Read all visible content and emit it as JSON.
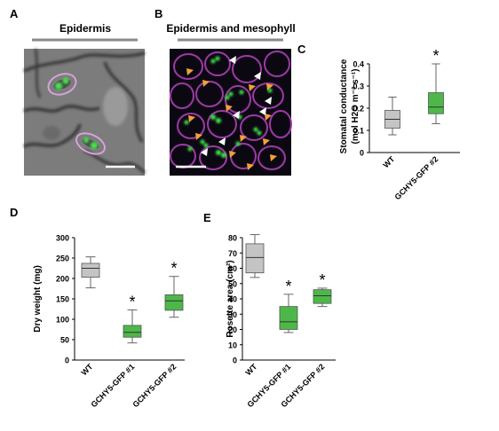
{
  "panels": {
    "A": {
      "label": "A",
      "title": "Epidermis"
    },
    "B": {
      "label": "B",
      "title": "Epidermis and mesophyll"
    },
    "C": {
      "label": "C"
    },
    "D": {
      "label": "D"
    },
    "E": {
      "label": "E"
    }
  },
  "chart_data": [
    {
      "id": "C",
      "type": "box",
      "ylabel_line1": "Stomatal conductance",
      "ylabel_line2": "(mol H2O m⁻² s⁻¹)",
      "ylim": [
        0,
        0.4
      ],
      "yticks": [
        "0",
        "0.1",
        "0.2",
        "0.3",
        "0.4"
      ],
      "categories": [
        "WT",
        "GCHY5-GFP #2"
      ],
      "boxes": [
        {
          "name": "WT",
          "color": "#c4c4c4",
          "min": 0.08,
          "q1": 0.11,
          "median": 0.15,
          "q3": 0.19,
          "max": 0.25,
          "star": ""
        },
        {
          "name": "GCHY5-GFP #2",
          "color": "#4db849",
          "min": 0.13,
          "q1": 0.175,
          "median": 0.205,
          "q3": 0.27,
          "max": 0.4,
          "star": "*"
        }
      ]
    },
    {
      "id": "D",
      "type": "box",
      "ylabel": "Dry weight (mg)",
      "ylim": [
        0,
        300
      ],
      "yticks": [
        "0",
        "50",
        "100",
        "150",
        "200",
        "250",
        "300"
      ],
      "categories": [
        "WT",
        "GCHY5-GFP #1",
        "GCHY5-GFP #2"
      ],
      "boxes": [
        {
          "name": "WT",
          "color": "#c4c4c4",
          "min": 177,
          "q1": 203,
          "median": 225,
          "q3": 237,
          "max": 253,
          "star": ""
        },
        {
          "name": "GCHY5-GFP #1",
          "color": "#4db849",
          "min": 42,
          "q1": 56,
          "median": 68,
          "q3": 85,
          "max": 123,
          "star": "*"
        },
        {
          "name": "GCHY5-GFP #2",
          "color": "#4db849",
          "min": 105,
          "q1": 122,
          "median": 145,
          "q3": 160,
          "max": 205,
          "star": "*"
        }
      ]
    },
    {
      "id": "E",
      "type": "box",
      "ylabel": "Rosette area (cm²)",
      "ylim": [
        0,
        80
      ],
      "yticks": [
        "0",
        "10",
        "20",
        "30",
        "40",
        "50",
        "60",
        "70",
        "80"
      ],
      "categories": [
        "WT",
        "GCHY5-GFP #1",
        "GCHY5-GFP #2"
      ],
      "boxes": [
        {
          "name": "WT",
          "color": "#c4c4c4",
          "min": 54,
          "q1": 57,
          "median": 67,
          "q3": 76,
          "max": 82,
          "star": ""
        },
        {
          "name": "GCHY5-GFP #1",
          "color": "#4db849",
          "min": 18,
          "q1": 20,
          "median": 25,
          "q3": 35,
          "max": 43,
          "star": "*"
        },
        {
          "name": "GCHY5-GFP #2",
          "color": "#4db849",
          "min": 35,
          "q1": 37,
          "median": 42,
          "q3": 46,
          "max": 47,
          "star": "*"
        }
      ]
    }
  ]
}
